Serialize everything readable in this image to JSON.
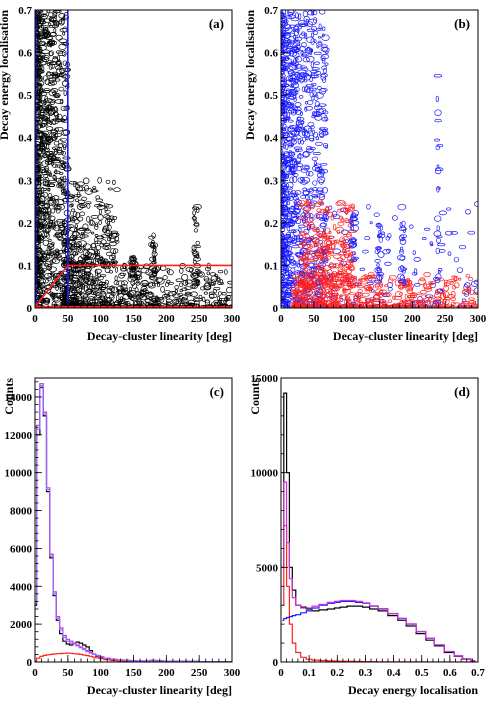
{
  "colors": {
    "black": "#000000",
    "blue": "#1a1aff",
    "red": "#ff2020",
    "magenta": "#cc33cc",
    "violet": "#9966ff"
  },
  "chart_data": [
    {
      "panel": "(a)",
      "type": "heatmap",
      "xlabel": "Decay-cluster linearity [deg]",
      "ylabel": "Decay energy localisation",
      "xlim": [
        0,
        300
      ],
      "ylim": [
        0,
        0.7
      ],
      "xticks": [
        0,
        50,
        100,
        150,
        200,
        250,
        300
      ],
      "yticks": [
        0,
        0.1,
        0.2,
        0.3,
        0.4,
        0.5,
        0.6,
        0.7
      ],
      "cut_lines": [
        {
          "color": "blue",
          "points": [
            [
              1,
              0
            ],
            [
              1,
              0.7
            ]
          ]
        },
        {
          "color": "blue",
          "points": [
            [
              50,
              0
            ],
            [
              50,
              0.7
            ]
          ]
        },
        {
          "color": "red",
          "points": [
            [
              0,
              0.003
            ],
            [
              50,
              0.1
            ],
            [
              300,
              0.1
            ]
          ]
        },
        {
          "color": "red",
          "points": [
            [
              0,
              0.003
            ],
            [
              300,
              0.003
            ]
          ]
        }
      ]
    },
    {
      "panel": "(b)",
      "type": "heatmap",
      "xlabel": "Decay-cluster linearity [deg]",
      "ylabel": "Decay energy localisation",
      "xlim": [
        0,
        300
      ],
      "ylim": [
        0,
        0.7
      ],
      "xticks": [
        0,
        50,
        100,
        150,
        200,
        250,
        300
      ],
      "yticks": [
        0,
        0.1,
        0.2,
        0.3,
        0.4,
        0.5,
        0.6,
        0.7
      ]
    },
    {
      "panel": "(c)",
      "type": "line",
      "xlabel": "Decay-cluster linearity [deg]",
      "ylabel": "Counts",
      "xlim": [
        0,
        300
      ],
      "ylim": [
        0,
        15000
      ],
      "xticks": [
        0,
        50,
        100,
        150,
        200,
        250,
        300
      ],
      "yticks": [
        0,
        2000,
        4000,
        6000,
        8000,
        10000,
        12000,
        14000
      ],
      "x": [
        0,
        5,
        10,
        15,
        20,
        25,
        30,
        35,
        40,
        45,
        50,
        55,
        60,
        65,
        70,
        75,
        80,
        85,
        90,
        95,
        100,
        110,
        120,
        130,
        140,
        150,
        160,
        170,
        180,
        190,
        200,
        220,
        240,
        260,
        280,
        300
      ],
      "series": [
        {
          "color": "black",
          "values": [
            3000,
            12000,
            14500,
            13000,
            9000,
            5500,
            3500,
            2200,
            1500,
            1100,
            950,
            900,
            1000,
            1050,
            1000,
            900,
            800,
            600,
            400,
            300,
            250,
            180,
            120,
            100,
            80,
            60,
            50,
            50,
            80,
            60,
            40,
            30,
            30,
            20,
            20,
            10
          ]
        },
        {
          "color": "red",
          "values": [
            50,
            200,
            300,
            350,
            380,
            400,
            420,
            440,
            450,
            460,
            470,
            460,
            440,
            420,
            400,
            370,
            340,
            300,
            260,
            220,
            180,
            120,
            80,
            50,
            30,
            20,
            15,
            10,
            10,
            5,
            5,
            5,
            0,
            0,
            0,
            0
          ]
        },
        {
          "color": "magenta",
          "values": [
            3200,
            12500,
            14700,
            13200,
            9200,
            5700,
            3700,
            2400,
            1800,
            1400,
            1200,
            1100,
            1000,
            900,
            800,
            700,
            600,
            500,
            420,
            350,
            280,
            200,
            150,
            110,
            90,
            70,
            60,
            60,
            90,
            70,
            50,
            40,
            30,
            20,
            20,
            10
          ]
        },
        {
          "color": "violet",
          "values": [
            3100,
            12300,
            14600,
            13100,
            9100,
            5600,
            3600,
            2300,
            1700,
            1300,
            1100,
            1000,
            950,
            850,
            750,
            650,
            550,
            470,
            400,
            330,
            270,
            190,
            140,
            100,
            80,
            60,
            50,
            50,
            80,
            60,
            40,
            30,
            30,
            20,
            20,
            10
          ]
        }
      ]
    },
    {
      "panel": "(d)",
      "type": "line",
      "xlabel": "Decay energy localisation",
      "ylabel": "Counts",
      "xlim": [
        0,
        0.7
      ],
      "ylim": [
        0,
        15000
      ],
      "xticks": [
        0,
        0.1,
        0.2,
        0.3,
        0.4,
        0.5,
        0.6,
        0.7
      ],
      "yticks": [
        0,
        5000,
        10000,
        15000
      ],
      "x": [
        0.005,
        0.015,
        0.025,
        0.035,
        0.045,
        0.06,
        0.08,
        0.1,
        0.12,
        0.15,
        0.18,
        0.2,
        0.22,
        0.25,
        0.28,
        0.3,
        0.33,
        0.36,
        0.4,
        0.43,
        0.46,
        0.5,
        0.53,
        0.56,
        0.6,
        0.63,
        0.66,
        0.69
      ],
      "series": [
        {
          "color": "black",
          "values": [
            5000,
            14200,
            10000,
            5000,
            3800,
            3000,
            2900,
            2800,
            2700,
            2750,
            2800,
            2850,
            2900,
            2950,
            2950,
            2900,
            2800,
            2700,
            2450,
            2200,
            1900,
            1500,
            1150,
            850,
            500,
            300,
            150,
            60
          ]
        },
        {
          "color": "red",
          "values": [
            3000,
            7200,
            4000,
            2000,
            1000,
            500,
            250,
            150,
            100,
            80,
            60,
            50,
            40,
            30,
            25,
            20,
            15,
            10,
            10,
            5,
            5,
            5,
            0,
            0,
            0,
            0,
            0,
            0
          ]
        },
        {
          "color": "blue",
          "values": [
            2200,
            2300,
            2350,
            2400,
            2450,
            2500,
            2600,
            2700,
            2850,
            3000,
            3100,
            3150,
            3200,
            3200,
            3150,
            3100,
            2950,
            2800,
            2550,
            2300,
            2000,
            1600,
            1250,
            900,
            550,
            320,
            160,
            70
          ]
        },
        {
          "color": "magenta",
          "values": [
            5000,
            9500,
            6300,
            4400,
            3400,
            3000,
            2850,
            2850,
            2950,
            3050,
            3150,
            3200,
            3250,
            3250,
            3200,
            3120,
            2970,
            2820,
            2560,
            2310,
            2010,
            1610,
            1255,
            905,
            552,
            322,
            162,
            72
          ]
        }
      ]
    }
  ]
}
